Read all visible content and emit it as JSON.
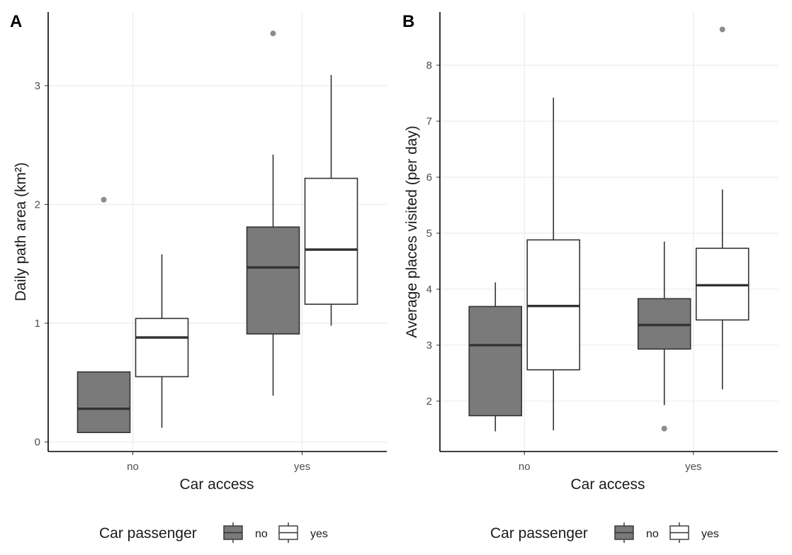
{
  "colors": {
    "no": "#7a7a7a",
    "yes": "#ffffff",
    "outline": "#333333",
    "grid": "#ebebeb",
    "outlier": "#8c8c8c"
  },
  "chart_data": [
    {
      "type": "boxplot",
      "panel": "A",
      "xlabel": "Car access",
      "ylabel": "Daily path area (km²)",
      "categories": [
        "no",
        "yes"
      ],
      "ylim": [
        -0.08,
        3.62
      ],
      "yticks": [
        0,
        1,
        2,
        3
      ],
      "grid": true,
      "series": [
        {
          "name": "no",
          "boxes": [
            {
              "category": "no",
              "whisker_low": 0.08,
              "q1": 0.08,
              "median": 0.28,
              "q3": 0.59,
              "whisker_high": 0.59,
              "outliers": [
                2.04
              ]
            },
            {
              "category": "yes",
              "whisker_low": 0.39,
              "q1": 0.91,
              "median": 1.47,
              "q3": 1.81,
              "whisker_high": 2.42,
              "outliers": [
                3.44
              ]
            }
          ]
        },
        {
          "name": "yes",
          "boxes": [
            {
              "category": "no",
              "whisker_low": 0.12,
              "q1": 0.55,
              "median": 0.88,
              "q3": 1.04,
              "whisker_high": 1.58,
              "outliers": []
            },
            {
              "category": "yes",
              "whisker_low": 0.98,
              "q1": 1.16,
              "median": 1.62,
              "q3": 2.22,
              "whisker_high": 3.09,
              "outliers": []
            }
          ]
        }
      ]
    },
    {
      "type": "boxplot",
      "panel": "B",
      "xlabel": "Car access",
      "ylabel": "Average places visited (per day)",
      "categories": [
        "no",
        "yes"
      ],
      "ylim": [
        1.1,
        8.95
      ],
      "yticks": [
        2,
        3,
        4,
        5,
        6,
        7,
        8
      ],
      "grid": true,
      "series": [
        {
          "name": "no",
          "boxes": [
            {
              "category": "no",
              "whisker_low": 1.46,
              "q1": 1.74,
              "median": 3.0,
              "q3": 3.69,
              "whisker_high": 4.12,
              "outliers": []
            },
            {
              "category": "yes",
              "whisker_low": 1.93,
              "q1": 2.93,
              "median": 3.36,
              "q3": 3.83,
              "whisker_high": 4.85,
              "outliers": [
                1.51
              ]
            }
          ]
        },
        {
          "name": "yes",
          "boxes": [
            {
              "category": "no",
              "whisker_low": 1.48,
              "q1": 2.56,
              "median": 3.7,
              "q3": 4.88,
              "whisker_high": 7.42,
              "outliers": []
            },
            {
              "category": "yes",
              "whisker_low": 2.21,
              "q1": 3.45,
              "median": 4.07,
              "q3": 4.73,
              "whisker_high": 5.78,
              "outliers": [
                8.64
              ]
            }
          ]
        }
      ]
    }
  ],
  "legend": {
    "title": "Car passenger",
    "entries": [
      "no",
      "yes"
    ],
    "position": "bottom"
  }
}
